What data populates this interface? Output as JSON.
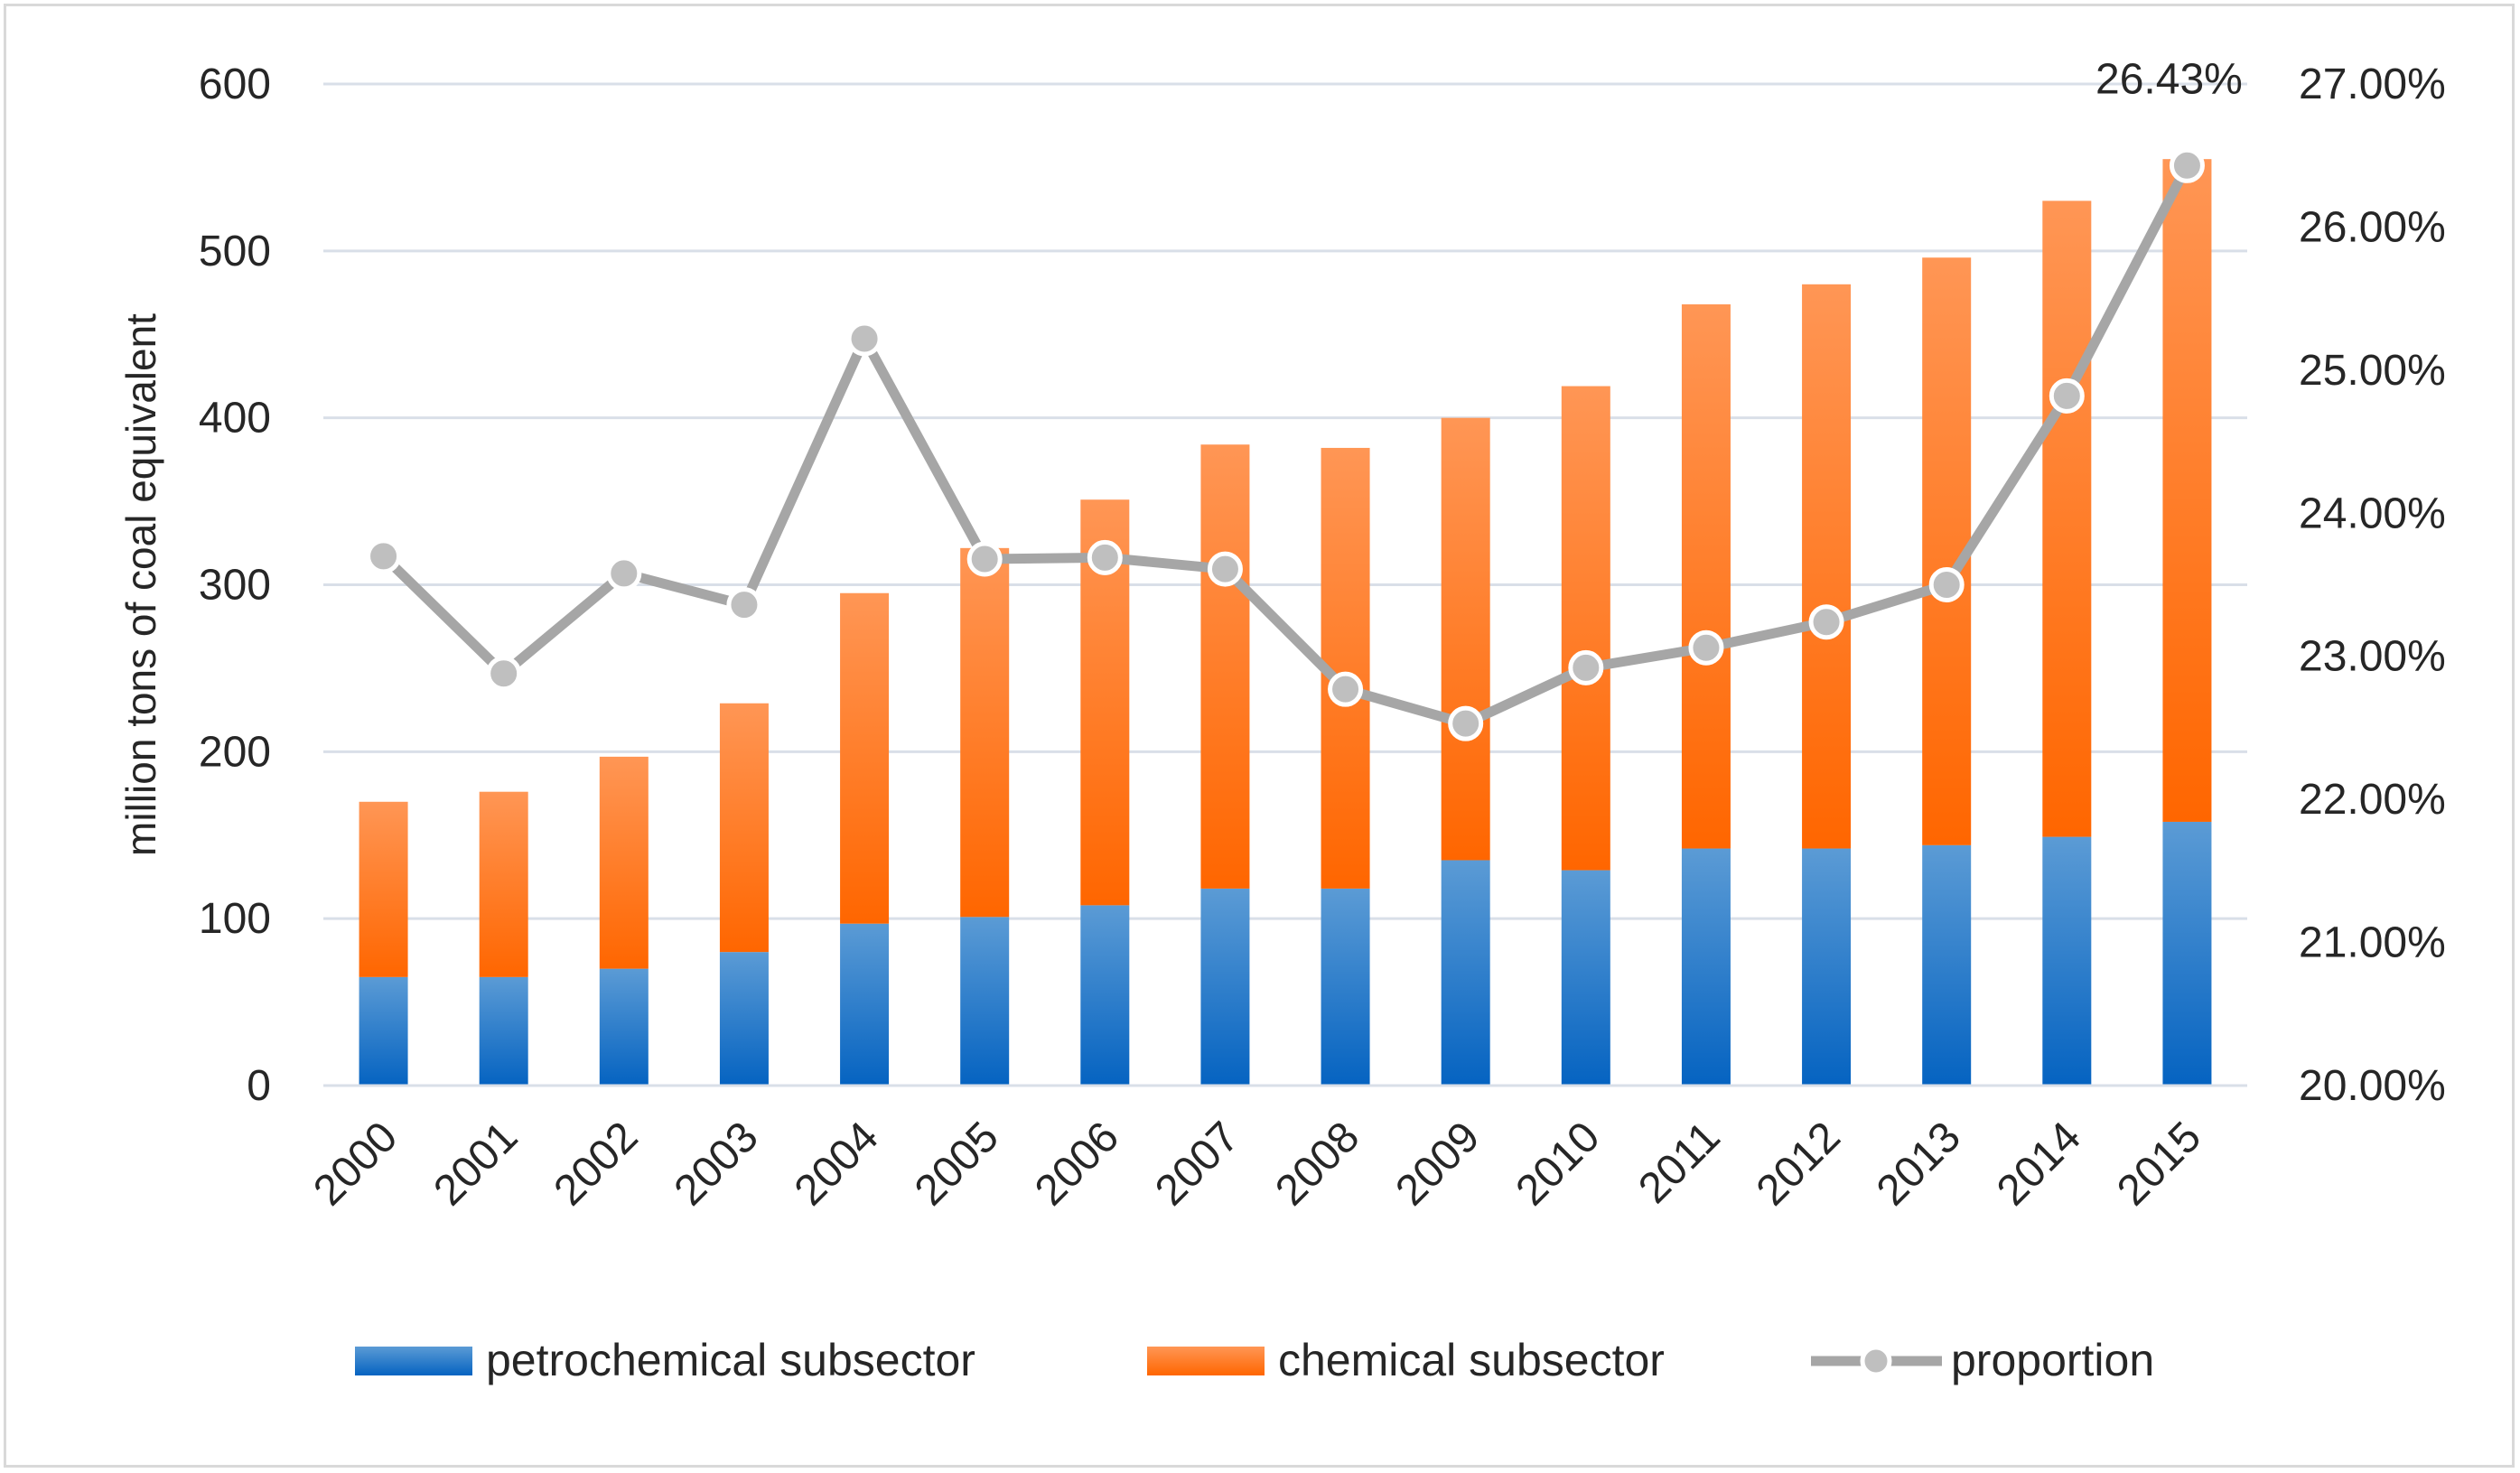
{
  "chart_data": {
    "type": "bar",
    "stacked": true,
    "categories": [
      "2000",
      "2001",
      "2002",
      "2003",
      "2004",
      "2005",
      "2006",
      "2007",
      "2008",
      "2009",
      "2010",
      "2011",
      "2012",
      "2013",
      "2014",
      "2015"
    ],
    "series": [
      {
        "name": "petrochemical subsector",
        "kind": "bar",
        "axis": "left",
        "values": [
          65,
          65,
          70,
          80,
          97,
          101,
          108,
          118,
          118,
          135,
          129,
          142,
          142,
          144,
          149,
          158
        ]
      },
      {
        "name": "chemical subsector",
        "kind": "bar",
        "axis": "left",
        "values": [
          105,
          111,
          127,
          149,
          198,
          221,
          243,
          266,
          264,
          265,
          290,
          326,
          338,
          352,
          381,
          397
        ]
      },
      {
        "name": "proportion",
        "kind": "line",
        "axis": "right",
        "values": [
          23.7,
          22.88,
          23.58,
          23.36,
          25.22,
          23.68,
          23.69,
          23.61,
          22.77,
          22.53,
          22.92,
          23.06,
          23.24,
          23.5,
          24.82,
          26.43
        ]
      }
    ],
    "title": "",
    "xlabel": "",
    "ylabel": "million tons of coal equivalent",
    "ylim": [
      0,
      600
    ],
    "yticks": [
      "0",
      "100",
      "200",
      "300",
      "400",
      "500",
      "600"
    ],
    "y2lim": [
      20,
      27
    ],
    "y2ticks": [
      "20.00%",
      "21.00%",
      "22.00%",
      "23.00%",
      "24.00%",
      "25.00%",
      "26.00%",
      "27.00%"
    ],
    "annotation": {
      "index": 15,
      "text": "26.43%"
    },
    "legend": [
      "petrochemical subsector",
      "chemical subsector",
      "proportion"
    ],
    "legend_position": "bottom",
    "grid": true,
    "colors": {
      "petro_dark": "#0563c1",
      "petro_light": "#5b9bd5",
      "chem_dark": "#ff6600",
      "chem_light": "#ff9655",
      "line": "#a6a6a6",
      "marker_fill": "#bfbfbf",
      "grid": "#d9dfe8"
    }
  }
}
